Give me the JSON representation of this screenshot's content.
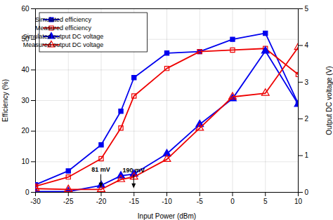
{
  "chart_data": {
    "type": "line",
    "xlabel": "Input Power (dBm)",
    "ylabel": "Efficiency (%)",
    "y2label": "Output DC voltage (V)",
    "x": [
      -30,
      -25,
      -20,
      -17,
      -15,
      -10,
      -5,
      0,
      5,
      10
    ],
    "xlim": [
      -30,
      10
    ],
    "xticks": [
      -30,
      -25,
      -20,
      -15,
      -10,
      -5,
      0,
      5,
      10
    ],
    "ylim": [
      0,
      60
    ],
    "yticks": [
      0,
      10,
      20,
      30,
      40,
      50,
      60
    ],
    "y2lim": [
      0,
      5
    ],
    "y2ticks": [
      0,
      1,
      2,
      3,
      4,
      5
    ],
    "grid": true,
    "legend": "upper left",
    "series": [
      {
        "name": "Simulated efficiency",
        "color": "#0000EE",
        "marker": "square",
        "values": [
          2.5,
          7.0,
          15.5,
          26.5,
          37.5,
          45.5,
          46.0,
          50.0,
          52.0,
          29.0
        ]
      },
      {
        "name": "Measured efficiency",
        "color": "#EE0000",
        "marker": "square-open",
        "values": [
          2.0,
          5.0,
          11.0,
          21.0,
          31.5,
          40.5,
          46.0,
          46.5,
          47.0,
          38.5
        ]
      },
      {
        "name": "Simulated output DC voltage",
        "color": "#0000EE",
        "marker": "triangle",
        "axis": "y2",
        "values": [
          0.02,
          0.02,
          0.19,
          0.45,
          0.5,
          1.05,
          1.85,
          2.55,
          3.85,
          2.4
        ]
      },
      {
        "name": "Measured output DC voltage",
        "color": "#EE0000",
        "marker": "triangle-open",
        "axis": "y2",
        "values": [
          0.1,
          0.08,
          0.08,
          0.35,
          0.42,
          0.9,
          1.75,
          2.6,
          2.7,
          3.95
        ]
      }
    ],
    "annotations": [
      {
        "text": "81 mV",
        "x": -20,
        "y": 1.2
      },
      {
        "text": "190 mV",
        "x": -15,
        "y": 1.0
      }
    ]
  }
}
